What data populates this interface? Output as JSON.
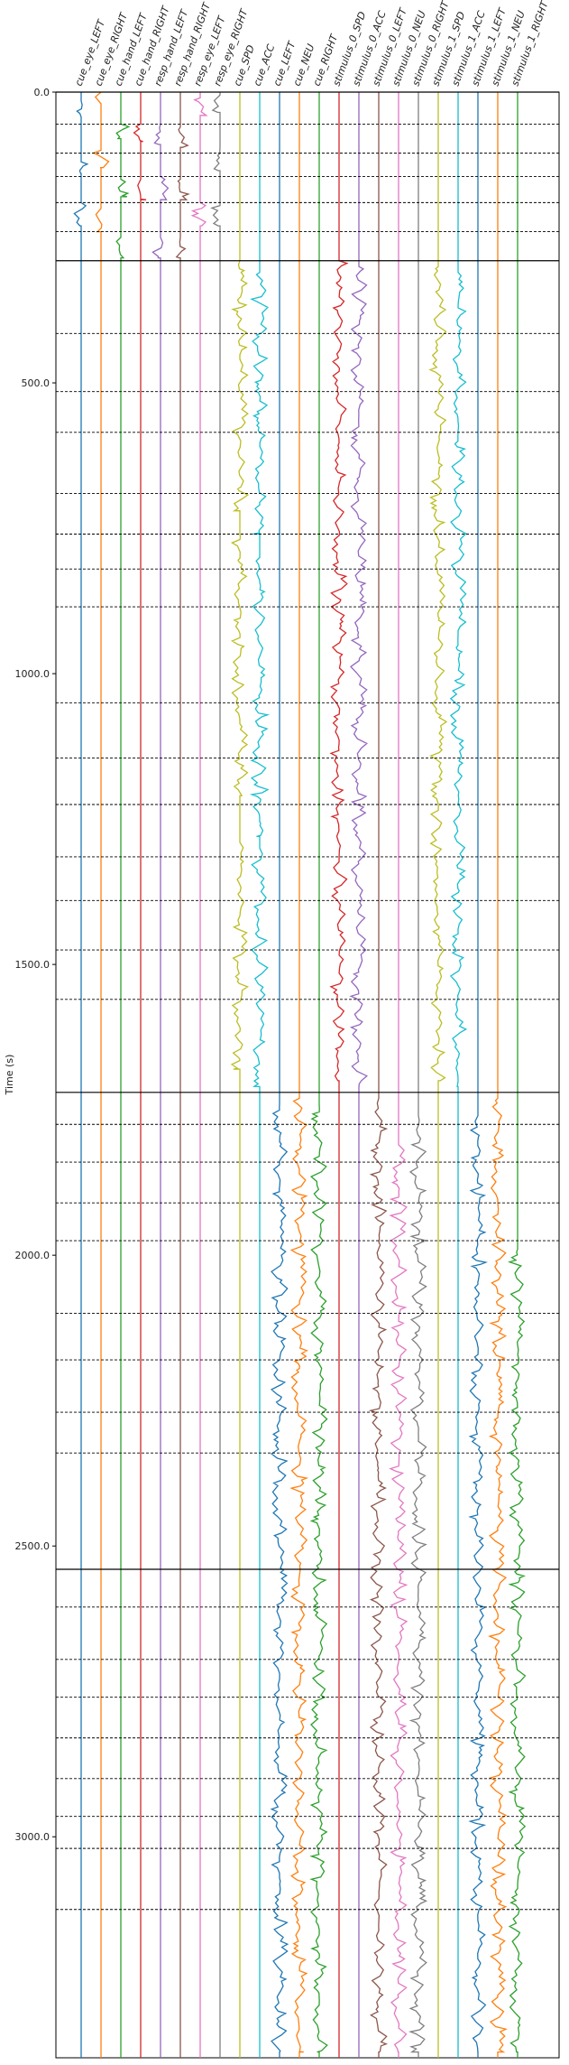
{
  "chart_data": {
    "type": "line",
    "title": "",
    "xlabel": "",
    "ylabel": "Time (s)",
    "ylim": [
      0,
      3380
    ],
    "y_inverted": true,
    "yticks": [
      0,
      500,
      1000,
      1500,
      2000,
      2500,
      3000
    ],
    "ytick_labels": [
      "0.0",
      "500.0",
      "1000.0",
      "1500.0",
      "2000.0",
      "2500.0",
      "3000.0"
    ],
    "grid": false,
    "legend": "none",
    "channels": [
      {
        "name": "cue_eye_LEFT",
        "color": "#1f77b4"
      },
      {
        "name": "cue_eye_RIGHT",
        "color": "#ff7f0e"
      },
      {
        "name": "cue_hand_LEFT",
        "color": "#2ca02c"
      },
      {
        "name": "cue_hand_RIGHT",
        "color": "#d62728"
      },
      {
        "name": "resp_hand_LEFT",
        "color": "#9467bd"
      },
      {
        "name": "resp_hand_RIGHT",
        "color": "#8c564b"
      },
      {
        "name": "resp_eye_LEFT",
        "color": "#e377c2"
      },
      {
        "name": "resp_eye_RIGHT",
        "color": "#7f7f7f"
      },
      {
        "name": "cue_SPD",
        "color": "#bcbd22"
      },
      {
        "name": "cue_ACC",
        "color": "#17becf"
      },
      {
        "name": "cue_LEFT",
        "color": "#1f77b4"
      },
      {
        "name": "cue_NEU",
        "color": "#ff7f0e"
      },
      {
        "name": "cue_RIGHT",
        "color": "#2ca02c"
      },
      {
        "name": "stimulus_0_SPD",
        "color": "#d62728"
      },
      {
        "name": "stimulus_0_ACC",
        "color": "#9467bd"
      },
      {
        "name": "stimulus_0_LEFT",
        "color": "#8c564b"
      },
      {
        "name": "stimulus_0_NEU",
        "color": "#e377c2"
      },
      {
        "name": "stimulus_0_RIGHT",
        "color": "#7f7f7f"
      },
      {
        "name": "stimulus_1_SPD",
        "color": "#bcbd22"
      },
      {
        "name": "stimulus_1_ACC",
        "color": "#17becf"
      },
      {
        "name": "stimulus_1_LEFT",
        "color": "#1f77b4"
      },
      {
        "name": "stimulus_1_NEU",
        "color": "#ff7f0e"
      },
      {
        "name": "stimulus_1_RIGHT",
        "color": "#2ca02c"
      }
    ],
    "run_boundaries": [
      0,
      290,
      1720,
      2540
    ],
    "trial_boundaries": [
      55,
      105,
      145,
      190,
      240,
      415,
      515,
      585,
      690,
      760,
      820,
      885,
      1050,
      1145,
      1225,
      1315,
      1390,
      1475,
      1560,
      1775,
      1840,
      1910,
      1975,
      2100,
      2180,
      2270,
      2340,
      2605,
      2695,
      2760,
      2830,
      2900,
      2965,
      3020,
      3125
    ],
    "active_periods": [
      {
        "channel": "cue_eye_LEFT",
        "intervals": [
          [
            15,
            45
          ],
          [
            120,
            140
          ],
          [
            190,
            230
          ]
        ]
      },
      {
        "channel": "cue_eye_RIGHT",
        "intervals": [
          [
            0,
            20
          ],
          [
            100,
            130
          ],
          [
            200,
            240
          ]
        ]
      },
      {
        "channel": "cue_hand_LEFT",
        "intervals": [
          [
            55,
            80
          ],
          [
            150,
            180
          ],
          [
            250,
            285
          ]
        ]
      },
      {
        "channel": "cue_hand_RIGHT",
        "intervals": [
          [
            55,
            85
          ],
          [
            150,
            185
          ]
        ]
      },
      {
        "channel": "resp_hand_LEFT",
        "intervals": [
          [
            55,
            90
          ],
          [
            145,
            185
          ],
          [
            250,
            285
          ]
        ]
      },
      {
        "channel": "resp_hand_RIGHT",
        "intervals": [
          [
            60,
            95
          ],
          [
            150,
            185
          ],
          [
            250,
            285
          ]
        ]
      },
      {
        "channel": "resp_eye_LEFT",
        "intervals": [
          [
            10,
            40
          ],
          [
            190,
            230
          ]
        ]
      },
      {
        "channel": "resp_eye_RIGHT",
        "intervals": [
          [
            5,
            35
          ],
          [
            95,
            135
          ],
          [
            195,
            230
          ]
        ]
      },
      {
        "channel": "cue_SPD",
        "intervals": [
          [
            290,
            720
          ],
          [
            760,
            1210
          ],
          [
            1290,
            1680
          ]
        ]
      },
      {
        "channel": "cue_ACC",
        "intervals": [
          [
            310,
            760
          ],
          [
            800,
            1280
          ],
          [
            1300,
            1710
          ]
        ]
      },
      {
        "channel": "cue_LEFT",
        "intervals": [
          [
            1740,
            3370
          ]
        ]
      },
      {
        "channel": "cue_NEU",
        "intervals": [
          [
            1730,
            3370
          ]
        ]
      },
      {
        "channel": "cue_RIGHT",
        "intervals": [
          [
            1740,
            3370
          ]
        ]
      },
      {
        "channel": "stimulus_0_SPD",
        "intervals": [
          [
            290,
            1700
          ]
        ]
      },
      {
        "channel": "stimulus_0_ACC",
        "intervals": [
          [
            300,
            1710
          ]
        ]
      },
      {
        "channel": "stimulus_0_LEFT",
        "intervals": [
          [
            1730,
            3370
          ]
        ]
      },
      {
        "channel": "stimulus_0_NEU",
        "intervals": [
          [
            1810,
            3370
          ]
        ]
      },
      {
        "channel": "stimulus_0_RIGHT",
        "intervals": [
          [
            1760,
            3370
          ]
        ]
      },
      {
        "channel": "stimulus_1_SPD",
        "intervals": [
          [
            300,
            1700
          ]
        ]
      },
      {
        "channel": "stimulus_1_ACC",
        "intervals": [
          [
            310,
            1710
          ]
        ]
      },
      {
        "channel": "stimulus_1_LEFT",
        "intervals": [
          [
            1760,
            3370
          ]
        ]
      },
      {
        "channel": "stimulus_1_NEU",
        "intervals": [
          [
            1730,
            3370
          ]
        ]
      },
      {
        "channel": "stimulus_1_RIGHT",
        "intervals": [
          [
            1990,
            3370
          ]
        ]
      }
    ]
  }
}
